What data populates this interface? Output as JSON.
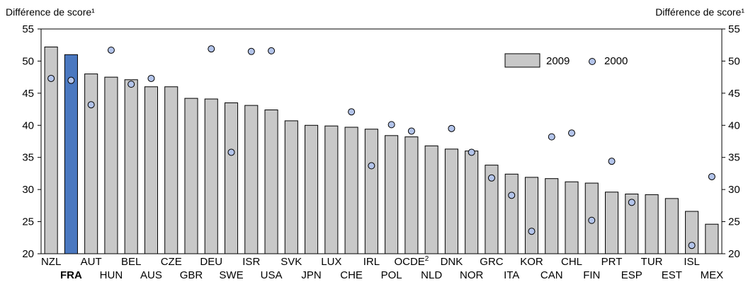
{
  "chart_data": {
    "type": "bar",
    "ylabel_left": "Différence de score¹",
    "ylabel_right": "Différence de score¹",
    "ylim": [
      20,
      55
    ],
    "yticks": [
      20,
      25,
      30,
      35,
      40,
      45,
      50,
      55
    ],
    "grid": false,
    "legend_position": "top-right",
    "highlight_category": "FRA",
    "colors": {
      "bar": "#c8c8c8",
      "highlight": "#4a78c0",
      "marker": "#b3c4ea",
      "outline": "#000000"
    },
    "categories": [
      "NZL",
      "FRA",
      "AUT",
      "HUN",
      "BEL",
      "AUS",
      "CZE",
      "GBR",
      "DEU",
      "SWE",
      "ISR",
      "USA",
      "SVK",
      "JPN",
      "LUX",
      "CHE",
      "IRL",
      "POL",
      "OCDE",
      "NLD",
      "DNK",
      "NOR",
      "GRC",
      "ITA",
      "KOR",
      "CAN",
      "CHL",
      "FIN",
      "PRT",
      "ESP",
      "TUR",
      "EST",
      "ISL",
      "MEX"
    ],
    "category_superscripts": {
      "OCDE": "2"
    },
    "series": [
      {
        "name": "2009",
        "style": "bar",
        "values": [
          52.2,
          51.0,
          48.0,
          47.5,
          47.1,
          46.0,
          46.0,
          44.2,
          44.1,
          43.5,
          43.1,
          42.4,
          40.7,
          40.0,
          39.9,
          39.7,
          39.4,
          38.4,
          38.2,
          36.8,
          36.3,
          36.0,
          33.8,
          32.4,
          31.9,
          31.7,
          31.2,
          31.0,
          29.6,
          29.3,
          29.2,
          28.6,
          26.6,
          24.6
        ]
      },
      {
        "name": "2000",
        "style": "marker",
        "values": [
          47.3,
          47.0,
          43.2,
          51.7,
          46.4,
          47.3,
          null,
          null,
          51.9,
          35.8,
          51.5,
          51.6,
          null,
          null,
          null,
          42.1,
          33.7,
          40.1,
          39.1,
          null,
          39.5,
          35.8,
          31.8,
          29.1,
          23.5,
          38.2,
          38.8,
          25.2,
          34.4,
          28.0,
          null,
          null,
          21.3,
          32.0
        ]
      }
    ]
  }
}
